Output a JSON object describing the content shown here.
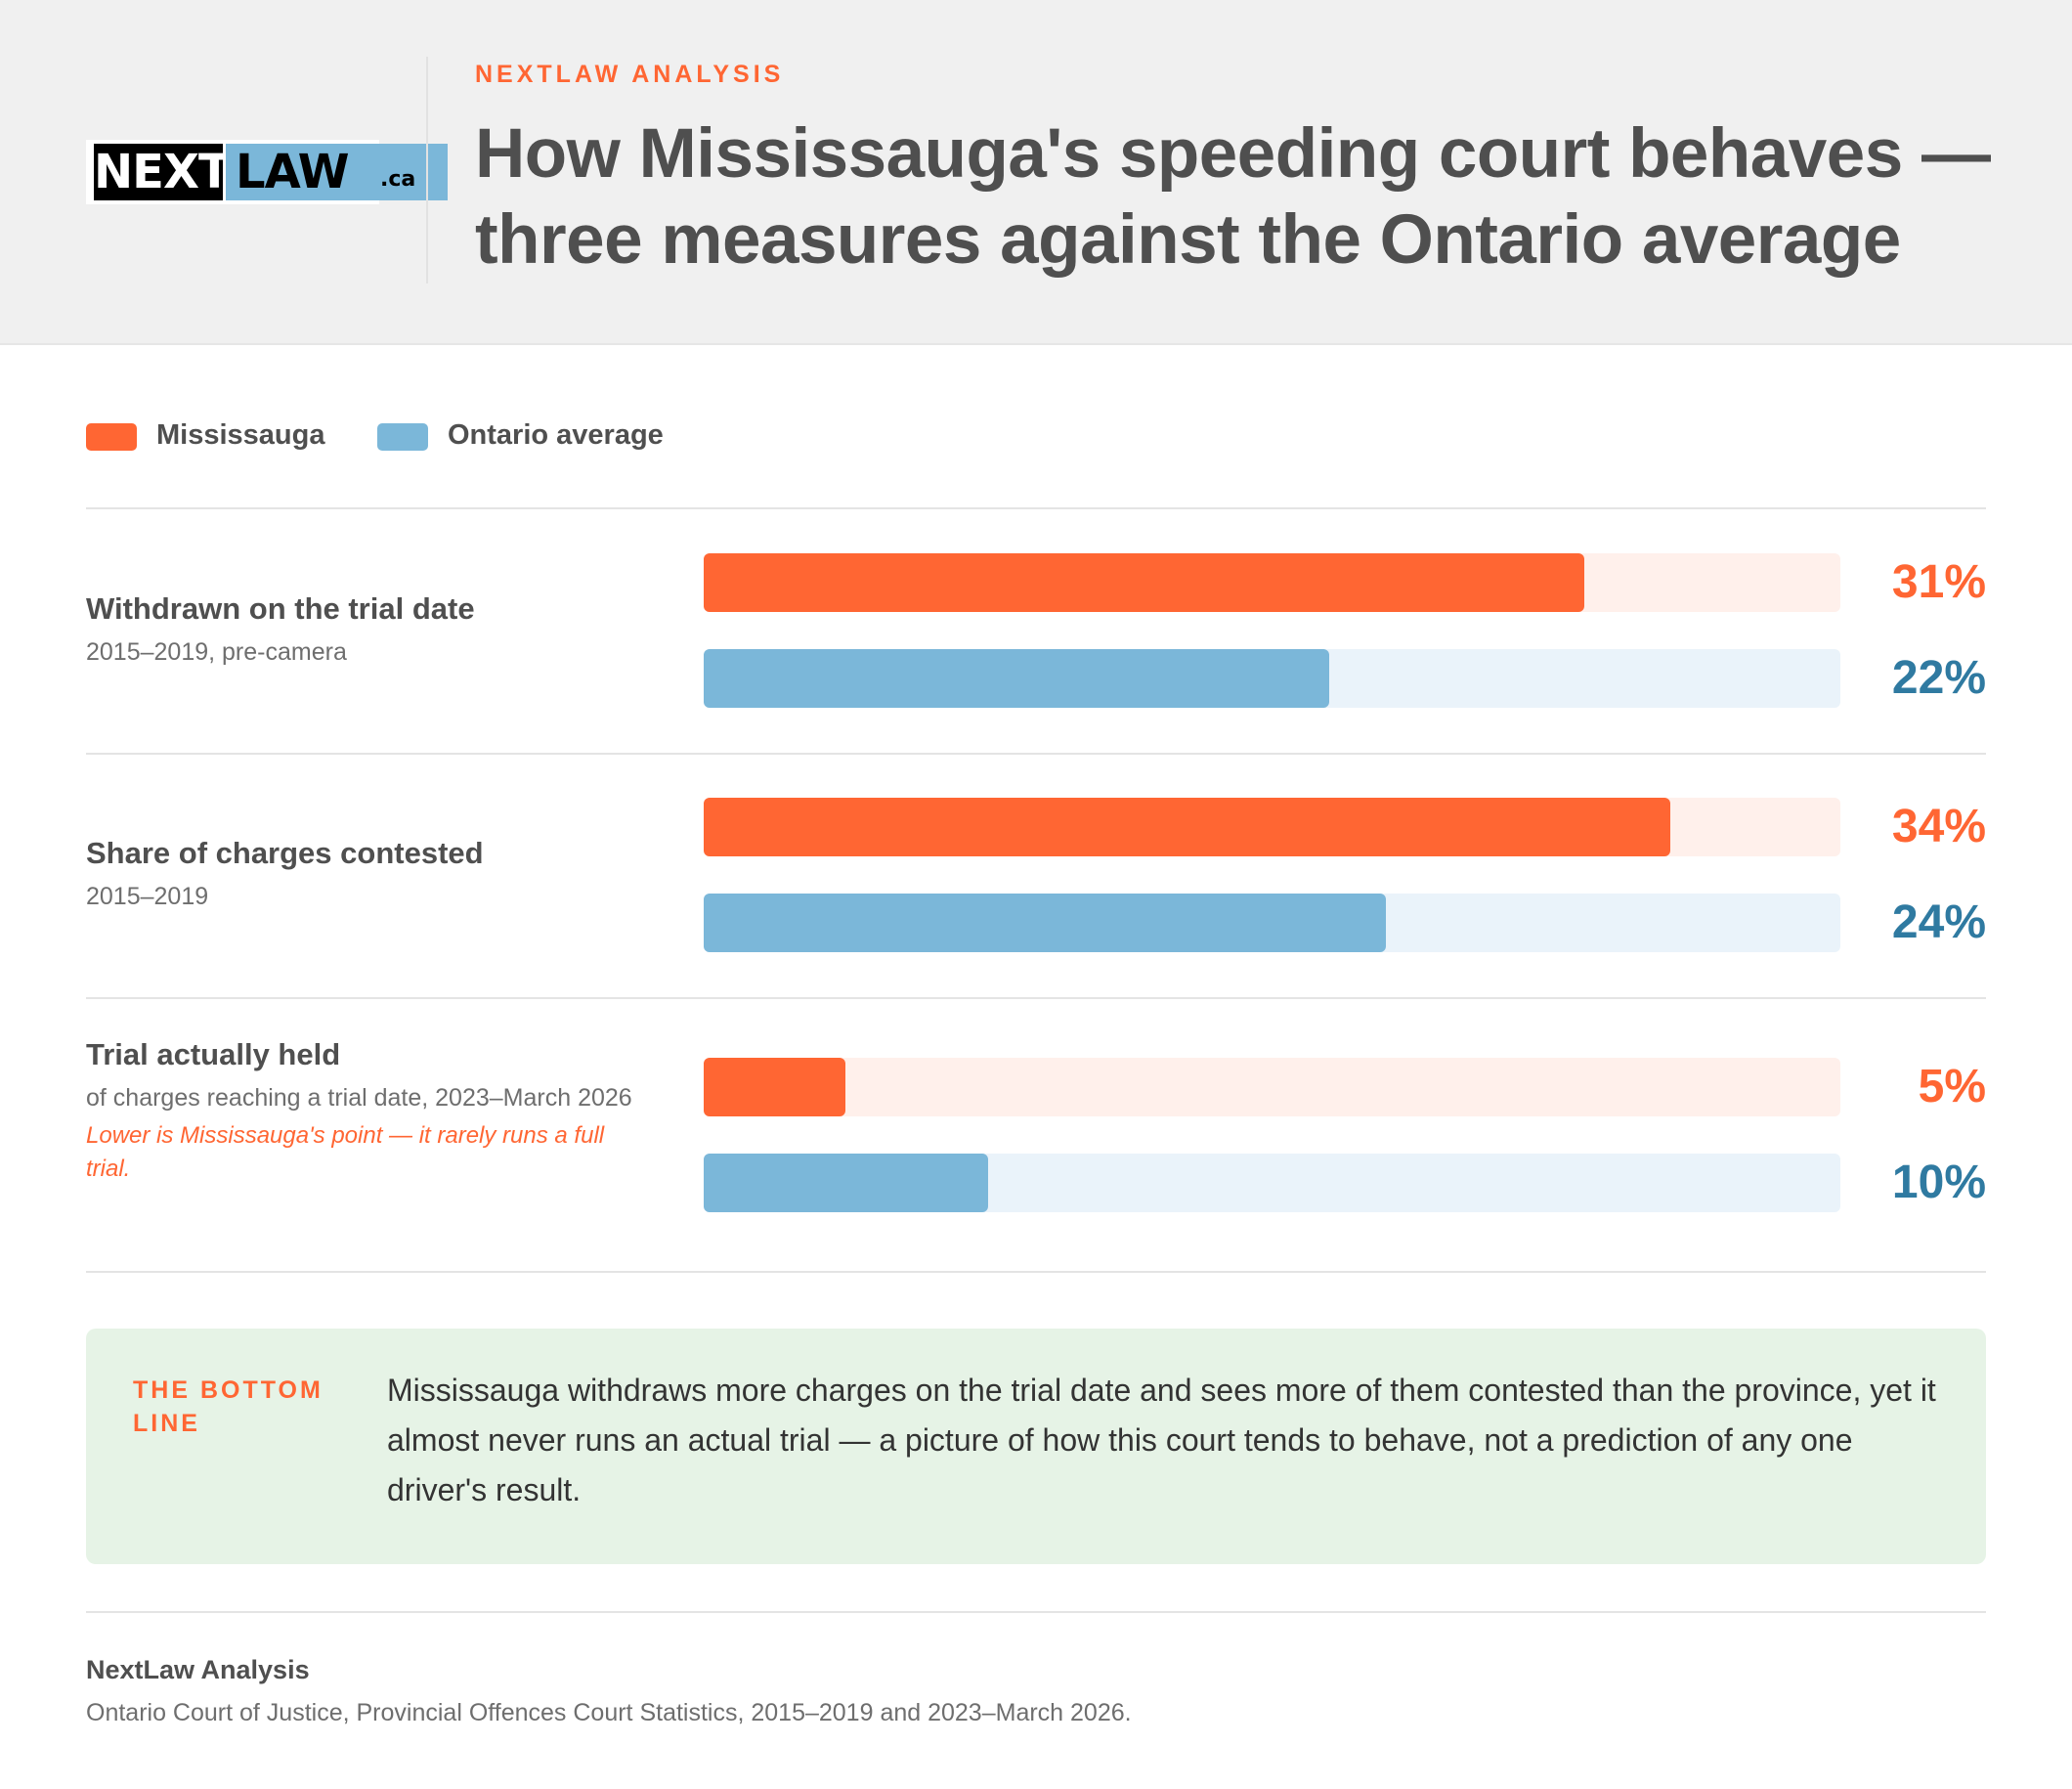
{
  "header": {
    "logo_next": "NEXT",
    "logo_law": "LAW",
    "logo_ca": ".ca",
    "kicker": "NEXTLAW ANALYSIS",
    "title": "How Mississauga's speeding court behaves — three measures against the Ontario average"
  },
  "legend": {
    "mississauga": "Mississauga",
    "ontario": "Ontario average"
  },
  "colors": {
    "mississauga": "#ff6633",
    "ontario": "#7bb7d9",
    "ontario_value_text": "#2f7aa1"
  },
  "chart_data": {
    "type": "bar",
    "orientation": "horizontal",
    "categories": [
      "Withdrawn on the trial date",
      "Share of charges contested",
      "Trial actually held"
    ],
    "subtitles": [
      "2015–2019, pre-camera",
      "2015–2019",
      "of charges reaching a trial date, 2023–March 2026"
    ],
    "notes": [
      "",
      "",
      "Lower is Mississauga's point — it rarely runs a full trial."
    ],
    "series": [
      {
        "name": "Mississauga",
        "values": [
          31,
          34,
          5
        ],
        "labels": [
          "31%",
          "34%",
          "5%"
        ]
      },
      {
        "name": "Ontario average",
        "values": [
          22,
          24,
          10
        ],
        "labels": [
          "22%",
          "24%",
          "10%"
        ]
      }
    ],
    "xlim": [
      0,
      40
    ],
    "unit": "%",
    "grid": false,
    "legend_position": "top-left"
  },
  "bottom_line": {
    "label": "THE BOTTOM LINE",
    "text": "Mississauga withdraws more charges on the trial date and sees more of them contested than the province, yet it almost never runs an actual trial — a picture of how this court tends to behave, not a prediction of any one driver's result."
  },
  "footer": {
    "title": "NextLaw Analysis",
    "source": "Ontario Court of Justice, Provincial Offences Court Statistics, 2015–2019 and 2023–March 2026."
  }
}
